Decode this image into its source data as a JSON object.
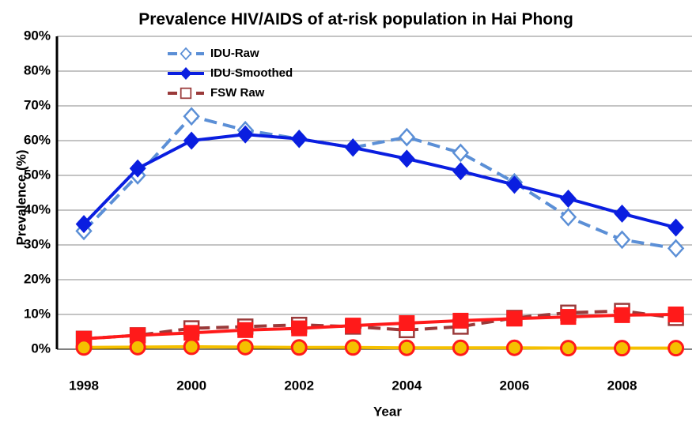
{
  "chart_data": {
    "type": "line",
    "title": "Prevalence HIV/AIDS of at-risk population in Hai Phong",
    "x_label": "Year",
    "y_label": "Prevalence (%)",
    "x": [
      1998,
      1999,
      2000,
      2001,
      2002,
      2003,
      2004,
      2005,
      2006,
      2007,
      2008,
      2009
    ],
    "series": [
      {
        "name": "IDU-Raw",
        "color": "#5b8fd6",
        "dash": true,
        "marker": "diamond",
        "filled": false,
        "values": [
          34,
          50,
          67,
          63,
          60.5,
          58,
          61,
          56.5,
          48,
          38,
          31.5,
          29
        ]
      },
      {
        "name": "IDU-Smoothed",
        "color": "#0a1ee0",
        "dash": false,
        "marker": "diamond",
        "filled": true,
        "values": [
          36,
          52,
          60,
          61.8,
          60.5,
          58,
          54.8,
          51.2,
          47.3,
          43.3,
          39,
          35
        ]
      },
      {
        "name": "FSW Raw",
        "color": "#9a3a3a",
        "dash": true,
        "marker": "square",
        "filled": false,
        "values": [
          3,
          4,
          6,
          6.5,
          7,
          6.5,
          5.5,
          6.5,
          9,
          10.5,
          11,
          9
        ]
      },
      {
        "color": "#ff1a1a",
        "dash": false,
        "marker": "square",
        "filled": true,
        "values": [
          3,
          4,
          4.7,
          5.5,
          6,
          6.8,
          7.5,
          8.2,
          8.8,
          9.3,
          9.8,
          10
        ]
      },
      {
        "color": "#f5c000",
        "dash": false,
        "marker": "circle",
        "filled": true,
        "edge": "#ff1a1a",
        "values": [
          0.5,
          0.6,
          0.7,
          0.6,
          0.5,
          0.5,
          0.4,
          0.4,
          0.4,
          0.3,
          0.3,
          0.3
        ]
      }
    ],
    "xlim": [
      1997.5,
      2009.3
    ],
    "xticks": [
      1998,
      2000,
      2002,
      2004,
      2006,
      2008
    ],
    "ylim": [
      0,
      90
    ],
    "yticks": [
      {
        "value": 0,
        "label": "0%"
      },
      {
        "value": 10,
        "label": "10%"
      },
      {
        "value": 20,
        "label": "20%"
      },
      {
        "value": 30,
        "label": "30%"
      },
      {
        "value": 40,
        "label": "40%"
      },
      {
        "value": 50,
        "label": "50%"
      },
      {
        "value": 60,
        "label": "60%"
      },
      {
        "value": 70,
        "label": "70%"
      },
      {
        "value": 80,
        "label": "80%"
      },
      {
        "value": 90,
        "label": "90%"
      }
    ],
    "grid": true,
    "legend": "upper left"
  }
}
